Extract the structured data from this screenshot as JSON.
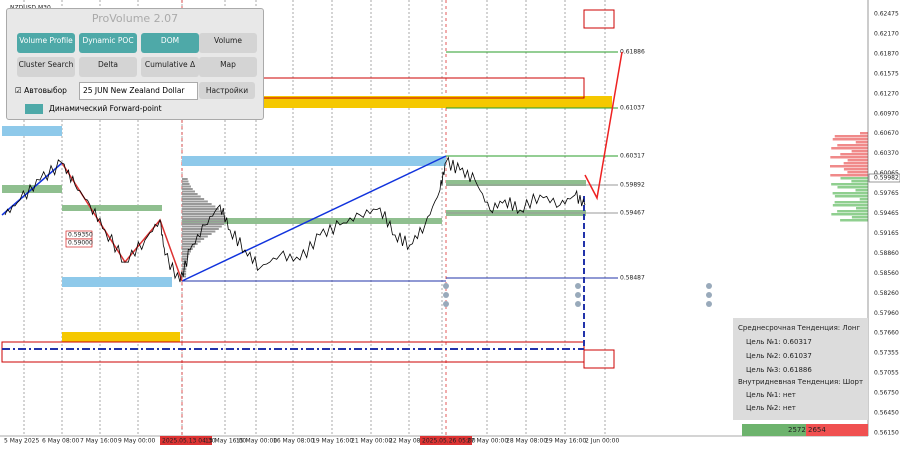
{
  "symbol": "NZDUSD,M30",
  "panel": {
    "title": "ProVolume 2.07",
    "buttons": [
      "Volume Profile",
      "Dynamic POC",
      "DOM",
      "Volume",
      "Cluster Search",
      "Delta",
      "Cumulative Δ",
      "Map"
    ],
    "checkbox": "Автовыбор",
    "instrument": "25 JUN New Zealand Dollar",
    "settings": "Настройки",
    "forward": "Динамический Forward-point"
  },
  "price_axis": [
    "0.62475",
    "0.62170",
    "0.61870",
    "0.61575",
    "0.61270",
    "0.60970",
    "0.60670",
    "0.60370",
    "0.60065",
    "0.59765",
    "0.59465",
    "0.59165",
    "0.58860",
    "0.58560",
    "0.58260",
    "0.57960",
    "0.57660",
    "0.57355",
    "0.57055",
    "0.56750",
    "0.56450",
    "0.56150"
  ],
  "current_price": "0.59982",
  "time_axis": [
    "5 May 2025",
    "6 May 08:00",
    "7 May 16:00",
    "9 May 00:00",
    "2025.05.13 04:30",
    "13 May 16:00",
    "15 May 00:00",
    "16 May 08:00",
    "19 May 16:00",
    "21 May 00:00",
    "22 May 08:00",
    "2025.05.26 05:00",
    "27 May 00:00",
    "28 May 08:00",
    "29 May 16:00",
    "2 Jun 00:00"
  ],
  "levels": [
    "0.61886",
    "0.61037",
    "0.60317",
    "0.59892",
    "0.59467",
    "0.58487"
  ],
  "chart_labels": [
    "0.59350",
    "0.59000"
  ],
  "trend_box": {
    "mid_title": "Среднесрочная Тенденция: Лонг",
    "targets": [
      "Цель №1: 0.60317",
      "Цель №2: 0.61037",
      "Цель №3: 0.61886"
    ],
    "intraday_title": "Внутридневная Тенденция: Шорт",
    "intraday_targets": [
      "Цель №1: нет",
      "Цель №2: нет"
    ]
  },
  "volume_bar": [
    "2572",
    "2654"
  ]
}
